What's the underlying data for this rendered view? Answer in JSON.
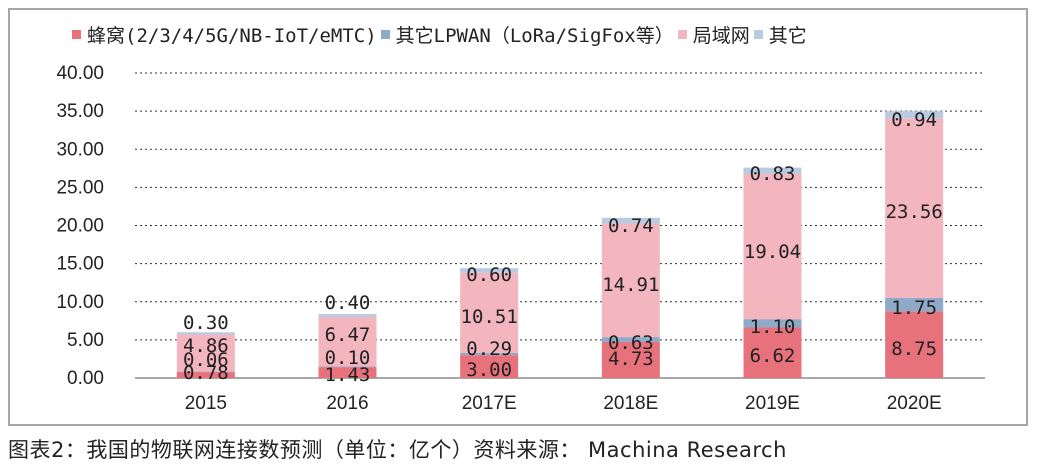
{
  "caption": "图表2：我国的物联网连接数预测（单位：亿个）资料来源： Machina Research",
  "chart_data": {
    "type": "bar",
    "stacked": true,
    "categories": [
      "2015",
      "2016",
      "2017E",
      "2018E",
      "2019E",
      "2020E"
    ],
    "series": [
      {
        "name": "蜂窝(2/3/4/5G/NB-IoT/eMTC)",
        "color": "#e8727c",
        "values": [
          0.78,
          1.43,
          3.0,
          4.73,
          6.62,
          8.75
        ],
        "labels": [
          "0.78",
          "1.43",
          "3.00",
          "4.73",
          "6.62",
          "8.75"
        ]
      },
      {
        "name": "其它LPWAN（LoRa/SigFox等）",
        "color": "#8fa9c9",
        "values": [
          0.06,
          0.1,
          0.29,
          0.63,
          1.1,
          1.75
        ],
        "labels": [
          "0.06",
          "0.10",
          "0.29",
          "0.63",
          "1.10",
          "1.75"
        ]
      },
      {
        "name": "局域网",
        "color": "#f3b6be",
        "values": [
          4.86,
          6.47,
          10.51,
          14.91,
          19.04,
          23.56
        ],
        "labels": [
          "4.86",
          "6.47",
          "10.51",
          "14.91",
          "19.04",
          "23.56"
        ]
      },
      {
        "name": "其它",
        "color": "#b9cbe0",
        "values": [
          0.3,
          0.4,
          0.6,
          0.74,
          0.83,
          0.94
        ],
        "labels": [
          "0.30",
          "0.40",
          "0.60",
          "0.74",
          "0.83",
          "0.94"
        ]
      }
    ],
    "ylim": [
      0,
      40
    ],
    "yticks": [
      "0.00",
      "5.00",
      "10.00",
      "15.00",
      "20.00",
      "25.00",
      "30.00",
      "35.00",
      "40.00"
    ],
    "ytick_values": [
      0,
      5,
      10,
      15,
      20,
      25,
      30,
      35,
      40
    ],
    "grid": true,
    "legend_position": "top"
  }
}
